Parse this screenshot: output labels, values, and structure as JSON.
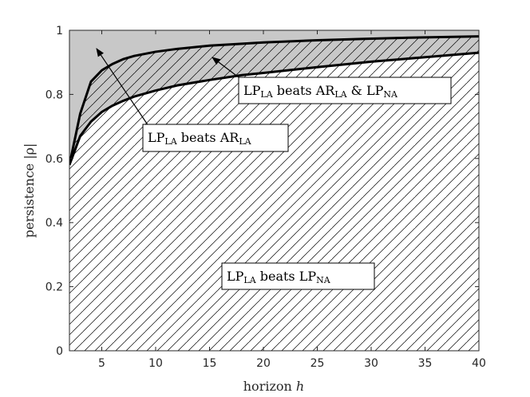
{
  "chart_data": {
    "type": "area",
    "title": "",
    "xlabel_main": "horizon",
    "xlabel_var": "h",
    "ylabel_main": "persistence",
    "ylabel_var": "|ρ|",
    "xlim": [
      2,
      40
    ],
    "ylim": [
      0,
      1
    ],
    "xticks": [
      5,
      10,
      15,
      20,
      25,
      30,
      35,
      40
    ],
    "yticks": [
      0,
      0.2,
      0.4,
      0.6,
      0.8,
      1
    ],
    "series": [
      {
        "x": [
          2,
          3,
          4,
          5,
          6,
          7,
          8,
          10,
          12,
          15,
          18,
          20,
          25,
          30,
          35,
          40
        ],
        "values": [
          0.58,
          0.74,
          0.84,
          0.875,
          0.895,
          0.91,
          0.92,
          0.933,
          0.942,
          0.952,
          0.958,
          0.962,
          0.969,
          0.974,
          0.978,
          0.981
        ]
      },
      {
        "x": [
          2,
          3,
          4,
          5,
          6,
          7,
          8,
          10,
          12,
          15,
          18,
          20,
          25,
          30,
          35,
          40
        ],
        "values": [
          0.58,
          0.67,
          0.715,
          0.745,
          0.765,
          0.78,
          0.793,
          0.812,
          0.828,
          0.845,
          0.86,
          0.867,
          0.885,
          0.902,
          0.916,
          0.93
        ]
      }
    ],
    "regions": {
      "top": {
        "fill": "#c8c8c8",
        "hatch": false
      },
      "middle": {
        "fill": "#c8c8c8",
        "hatch": true
      },
      "bottom": {
        "fill": "#ffffff",
        "hatch": true
      }
    },
    "annotations": [
      {
        "main": "LP",
        "sub": "LA",
        "tail_main": " beats AR",
        "tail_sub": "LA"
      },
      {
        "main": "LP",
        "sub": "LA",
        "mid_main": " beats AR",
        "mid_sub": "LA",
        "tail_main": " & LP",
        "tail_sub": "NA"
      },
      {
        "main": "LP",
        "sub": "LA",
        "tail_main": " beats LP",
        "tail_sub": "NA"
      }
    ],
    "colors": {
      "curve": "#000000",
      "axis": "#262626",
      "shade": "#c8c8c8"
    }
  }
}
